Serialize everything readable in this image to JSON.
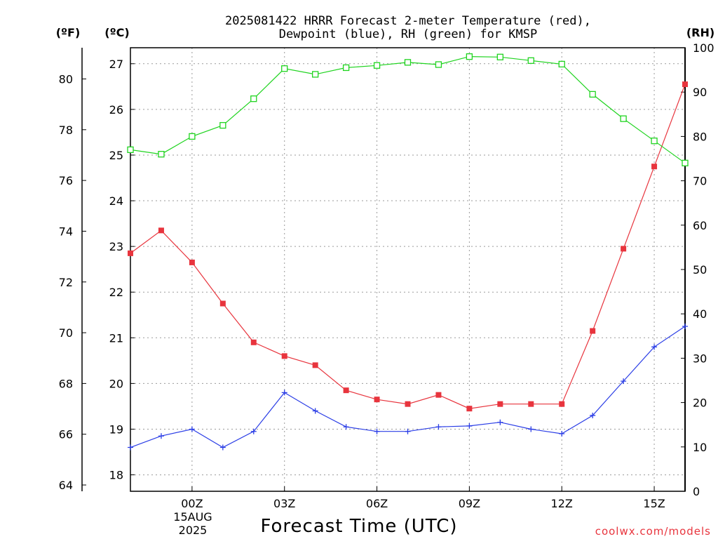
{
  "chart_data": {
    "type": "line",
    "title": [
      "2025081422 HRRR Forecast 2-meter Temperature (red),",
      "Dewpoint (blue), RH (green) for KMSP"
    ],
    "xlabel": "Forecast Time (UTC)",
    "units": {
      "fahrenheit": "(ºF)",
      "celsius": "(ºC)",
      "rh": "(RH)"
    },
    "x_ticks": [
      "00Z",
      "03Z",
      "06Z",
      "09Z",
      "12Z",
      "15Z"
    ],
    "x_date_lines": [
      "15AUG",
      "2025"
    ],
    "hours": [
      22,
      23,
      0,
      1,
      2,
      3,
      4,
      5,
      6,
      7,
      8,
      9,
      10,
      11,
      12,
      13,
      14,
      15,
      16
    ],
    "celsius_ticks": [
      18,
      19,
      20,
      21,
      22,
      23,
      24,
      25,
      26,
      27
    ],
    "fahrenheit_ticks": [
      64,
      66,
      68,
      70,
      72,
      74,
      76,
      78,
      80
    ],
    "rh_ticks": [
      0,
      10,
      20,
      30,
      40,
      50,
      60,
      70,
      80,
      90,
      100
    ],
    "ylim_celsius": [
      17.64,
      27.35
    ],
    "ylim_rh": [
      0,
      100
    ],
    "grid": true,
    "series": [
      {
        "name": "Temperature",
        "axis": "celsius",
        "color": "#e8343d",
        "marker": "filled-square",
        "values": [
          22.85,
          23.35,
          22.65,
          21.75,
          20.9,
          20.6,
          20.4,
          19.85,
          19.65,
          19.55,
          19.75,
          19.45,
          19.55,
          19.55,
          19.55,
          21.15,
          22.95,
          24.75,
          26.55
        ]
      },
      {
        "name": "Dewpoint",
        "axis": "celsius",
        "color": "#2a3de6",
        "marker": "plus",
        "values": [
          18.6,
          18.85,
          19.0,
          18.6,
          18.95,
          19.8,
          19.4,
          19.05,
          18.95,
          18.95,
          19.05,
          19.07,
          19.15,
          19.0,
          18.9,
          19.3,
          20.05,
          20.8,
          21.25
        ]
      },
      {
        "name": "RH",
        "axis": "rh",
        "color": "#1fd41f",
        "marker": "open-square",
        "values": [
          77,
          76,
          80,
          82.5,
          88.5,
          95.3,
          94,
          95.5,
          96,
          96.7,
          96.2,
          98,
          97.9,
          97.1,
          96.3,
          89.5,
          84,
          79,
          74
        ]
      }
    ]
  },
  "credit": "coolwx.com/models"
}
